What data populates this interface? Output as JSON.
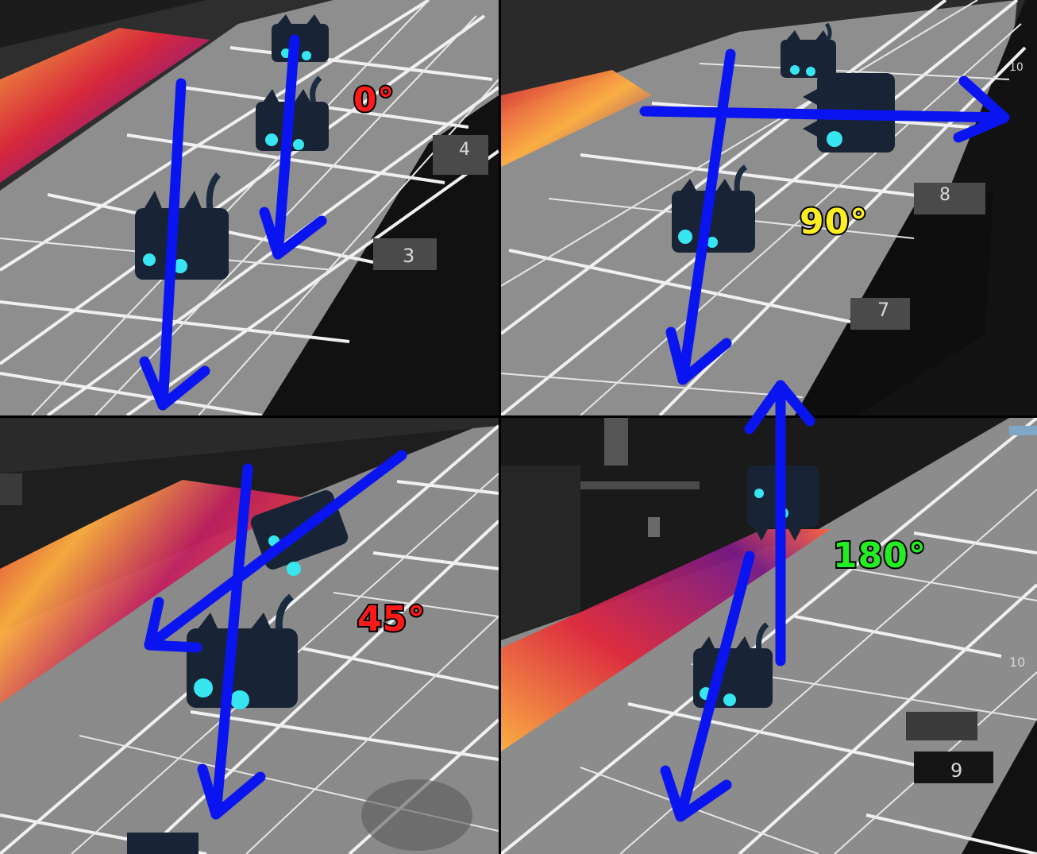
{
  "panels": {
    "p0": {
      "angle_label": "0°",
      "angle_color": "#ff1a1a",
      "ticks": [
        "4",
        "3"
      ]
    },
    "p90": {
      "angle_label": "90°",
      "angle_color": "#ffee22",
      "ticks": [
        "10",
        "8",
        "7"
      ]
    },
    "p45": {
      "angle_label": "45°",
      "angle_color": "#ff1a1a",
      "ticks": []
    },
    "p180": {
      "angle_label": "180°",
      "angle_color": "#22ee22",
      "ticks": [
        "10",
        "9"
      ]
    }
  },
  "colors": {
    "arrow": "#0a14f0",
    "grid_floor": "#8c8c8c",
    "grid_line": "#f2f2f2",
    "cat_body": "#152233",
    "cat_eye": "#37e6f0",
    "heatmap_hot": "#ffd24a",
    "heatmap_mid": "#e0283c",
    "heatmap_cool": "#4a1a78"
  },
  "icons": [
    "cat-robot-icon",
    "direction-arrow-icon"
  ]
}
